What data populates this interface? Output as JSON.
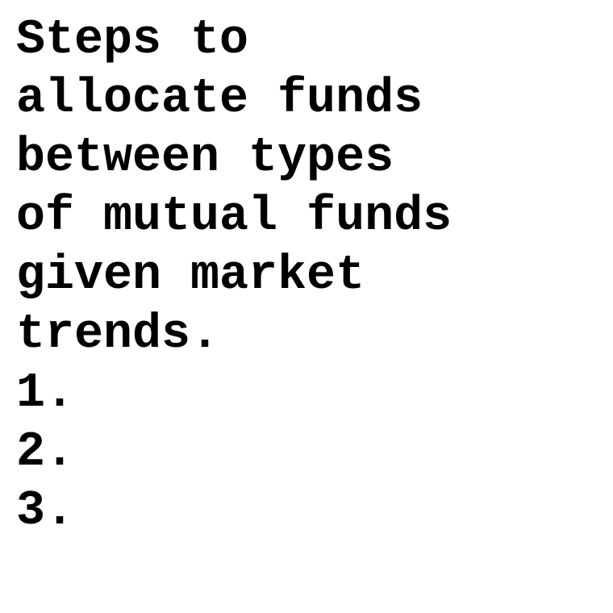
{
  "heading_lines": [
    "Steps to",
    "allocate funds",
    "between types",
    "of mutual funds",
    "given market",
    "trends."
  ],
  "list_items": [
    "1.",
    "2.",
    "3."
  ],
  "colors": {
    "text": "#000000",
    "background": "#ffffff"
  }
}
